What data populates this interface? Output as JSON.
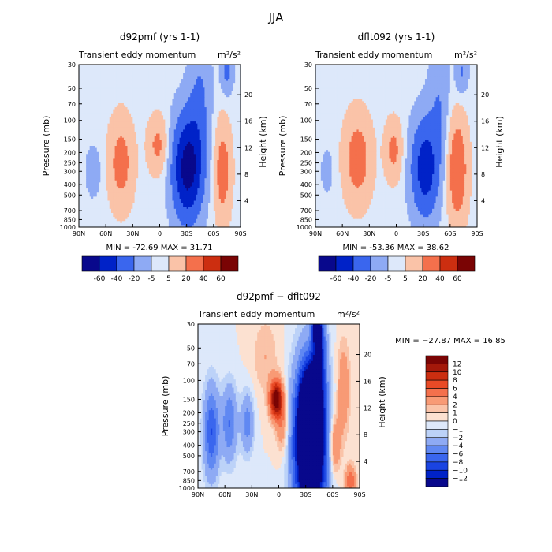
{
  "figure": {
    "title": "JJA"
  },
  "ticks": {
    "pressure": [
      "30",
      "50",
      "70",
      "100",
      "150",
      "200",
      "250",
      "300",
      "400",
      "500",
      "700",
      "850",
      "1000"
    ],
    "height": [
      "20",
      "16",
      "12",
      "8",
      "4"
    ],
    "lat": [
      "90N",
      "60N",
      "30N",
      "0",
      "30S",
      "60S",
      "90S"
    ]
  },
  "colors": {
    "blues": [
      "#08088c",
      "#0022c8",
      "#1a44e2",
      "#3a66ee",
      "#6088f2",
      "#8eaaf4",
      "#bcd2f8",
      "#dde8fa"
    ],
    "reds": [
      "#fce1d1",
      "#fac3a8",
      "#f89a75",
      "#f4704c",
      "#e84a26",
      "#cc2e10",
      "#a4180a",
      "#7a0404"
    ]
  },
  "chart_data": [
    {
      "type": "heatmap",
      "title": "d92pmf (yrs 1-1)",
      "subtitle": "Transient eddy momentum",
      "units": "m²/s²",
      "xlabel": "",
      "ylabel": "Pressure (mb)",
      "ylabel_right": "Height (km)",
      "xlim": [
        "90N",
        "90S"
      ],
      "ylim": [
        1000,
        30
      ],
      "y_scale": "log",
      "min_label": "MIN = -72.69",
      "max_label": "MAX =  31.71",
      "legend": "bottom",
      "levels": [
        "-60",
        "-40",
        "-20",
        "-5",
        "5",
        "20",
        "40",
        "60"
      ],
      "features": [
        {
          "lat": 74,
          "p": 300,
          "value": -15,
          "lat_width": 6,
          "p_decades": 0.17
        },
        {
          "lat": 43,
          "p": 250,
          "value": 28,
          "lat_width": 10,
          "p_decades": 0.3
        },
        {
          "lat": 2,
          "p": 170,
          "value": 25,
          "lat_width": 8,
          "p_decades": 0.19
        },
        {
          "lat": -31,
          "p": 280,
          "value": -70,
          "lat_width": 12,
          "p_decades": 0.35
        },
        {
          "lat": -45,
          "p": 60,
          "value": -20,
          "lat_width": 9,
          "p_decades": 0.45
        },
        {
          "lat": -70,
          "p": 300,
          "value": 30,
          "lat_width": 7,
          "p_decades": 0.33
        },
        {
          "lat": -75,
          "p": 35,
          "value": -25,
          "lat_width": 5,
          "p_decades": 0.15
        }
      ]
    },
    {
      "type": "heatmap",
      "title": "dflt092 (yrs 1-1)",
      "subtitle": "Transient eddy momentum",
      "units": "m²/s²",
      "xlabel": "",
      "ylabel": "Pressure (mb)",
      "ylabel_right": "Height (km)",
      "xlim": [
        "90N",
        "90S"
      ],
      "ylim": [
        1000,
        30
      ],
      "y_scale": "log",
      "min_label": "MIN = -53.36",
      "max_label": "MAX =  38.62",
      "legend": "bottom",
      "levels": [
        "-60",
        "-40",
        "-20",
        "-5",
        "5",
        "20",
        "40",
        "60"
      ],
      "features": [
        {
          "lat": 77,
          "p": 300,
          "value": -12,
          "lat_width": 5,
          "p_decades": 0.15
        },
        {
          "lat": 43,
          "p": 230,
          "value": 30,
          "lat_width": 11,
          "p_decades": 0.3
        },
        {
          "lat": 3,
          "p": 190,
          "value": 25,
          "lat_width": 7,
          "p_decades": 0.2
        },
        {
          "lat": -32,
          "p": 280,
          "value": -52,
          "lat_width": 11,
          "p_decades": 0.33
        },
        {
          "lat": -48,
          "p": 60,
          "value": -18,
          "lat_width": 8,
          "p_decades": 0.45
        },
        {
          "lat": -68,
          "p": 290,
          "value": 38,
          "lat_width": 8,
          "p_decades": 0.35
        },
        {
          "lat": -73,
          "p": 35,
          "value": -22,
          "lat_width": 5,
          "p_decades": 0.15
        }
      ]
    },
    {
      "type": "heatmap",
      "title": "d92pmf − dflt092",
      "subtitle": "Transient eddy momentum",
      "units": "m²/s²",
      "xlabel": "",
      "ylabel": "Pressure (mb)",
      "ylabel_right": "Height (km)",
      "xlim": [
        "90N",
        "90S"
      ],
      "ylim": [
        1000,
        30
      ],
      "y_scale": "log",
      "min_label": "MIN = −27.87",
      "max_label": "MAX =  16.85",
      "legend": "right",
      "levels": [
        "12",
        "10",
        "8",
        "6",
        "4",
        "2",
        "1",
        "0",
        "−1",
        "−2",
        "−4",
        "−6",
        "−8",
        "−10",
        "−12"
      ],
      "features": [
        {
          "lat": 75,
          "p": 300,
          "value": -8,
          "lat_width": 6,
          "p_decades": 0.3
        },
        {
          "lat": 55,
          "p": 250,
          "value": -6,
          "lat_width": 6,
          "p_decades": 0.25
        },
        {
          "lat": 35,
          "p": 250,
          "value": -5,
          "lat_width": 5,
          "p_decades": 0.2
        },
        {
          "lat": 3,
          "p": 150,
          "value": 14,
          "lat_width": 5,
          "p_decades": 0.12
        },
        {
          "lat": -4,
          "p": 250,
          "value": 4,
          "lat_width": 5,
          "p_decades": 0.2
        },
        {
          "lat": -35,
          "p": 400,
          "value": -25,
          "lat_width": 12,
          "p_decades": 0.5
        },
        {
          "lat": -35,
          "p": 200,
          "value": -15,
          "lat_width": 7,
          "p_decades": 0.25
        },
        {
          "lat": -45,
          "p": 50,
          "value": -10,
          "lat_width": 5,
          "p_decades": 0.3
        },
        {
          "lat": -42,
          "p": 32,
          "value": -14,
          "lat_width": 3,
          "p_decades": 0.1
        },
        {
          "lat": -62,
          "p": 400,
          "value": 5,
          "lat_width": 5,
          "p_decades": 0.2
        },
        {
          "lat": -72,
          "p": 120,
          "value": 4,
          "lat_width": 5,
          "p_decades": 0.3
        },
        {
          "lat": -80,
          "p": 850,
          "value": 6,
          "lat_width": 4,
          "p_decades": 0.1
        },
        {
          "lat": 15,
          "p": 60,
          "value": 2,
          "lat_width": 10,
          "p_decades": 0.25
        }
      ]
    }
  ]
}
